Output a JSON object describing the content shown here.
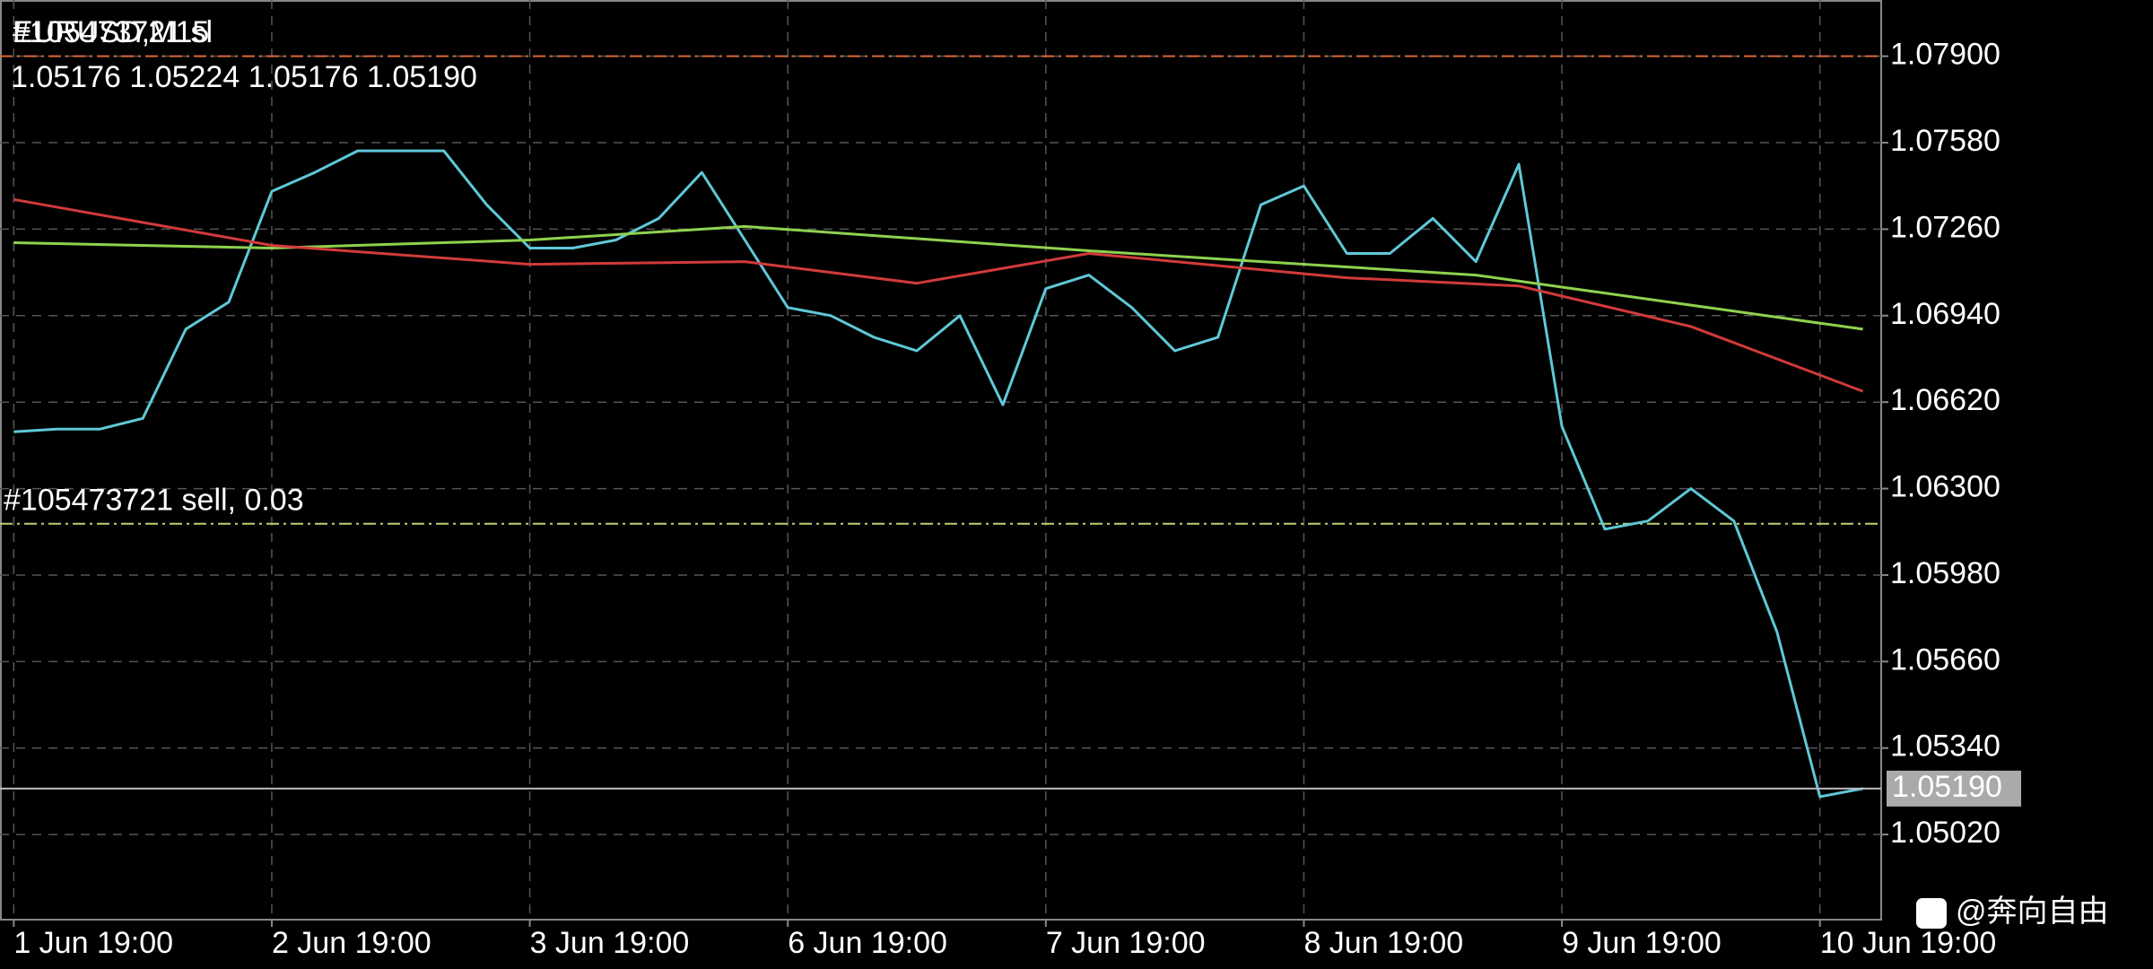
{
  "chart_data": {
    "type": "line",
    "title": "EURUSD,M15",
    "order_sl_label": "#105473721 sl",
    "ohlc_label": "1.05176 1.05224 1.05176 1.05190",
    "order_label": "#105473721 sell, 0.03",
    "watermark": "@奔向自由",
    "grid": true,
    "xlim": [
      -1.28,
      173.7
    ],
    "xticks": [
      {
        "value": 0,
        "label": "1 Jun 19:00"
      },
      {
        "value": 24,
        "label": "2 Jun 19:00"
      },
      {
        "value": 48,
        "label": "3 Jun 19:00"
      },
      {
        "value": 72,
        "label": "6 Jun 19:00"
      },
      {
        "value": 96,
        "label": "7 Jun 19:00"
      },
      {
        "value": 120,
        "label": "8 Jun 19:00"
      },
      {
        "value": 144,
        "label": "9 Jun 19:00"
      },
      {
        "value": 168,
        "label": "10 Jun 19:00"
      }
    ],
    "ylim": [
      1.04705,
      1.08108
    ],
    "yticks": [
      {
        "value": 1.079,
        "label": "1.07900"
      },
      {
        "value": 1.0758,
        "label": "1.07580"
      },
      {
        "value": 1.0726,
        "label": "1.07260"
      },
      {
        "value": 1.0694,
        "label": "1.06940"
      },
      {
        "value": 1.0662,
        "label": "1.06620"
      },
      {
        "value": 1.063,
        "label": "1.06300"
      },
      {
        "value": 1.0598,
        "label": "1.05980"
      },
      {
        "value": 1.0566,
        "label": "1.05660"
      },
      {
        "value": 1.0534,
        "label": "1.05340"
      },
      {
        "value": 1.0502,
        "label": "1.05020"
      }
    ],
    "levels": [
      {
        "value": 1.079,
        "color": "#d9683a"
      },
      {
        "value": 1.0617,
        "color": "#b7d36c"
      }
    ],
    "current_price": {
      "value": 1.0519,
      "label": "1.05190"
    },
    "series": [
      {
        "color": "#5fc8d8",
        "x": [
          0,
          4,
          8,
          12,
          16,
          20,
          24,
          28,
          32,
          36,
          40,
          44,
          48,
          52,
          56,
          60,
          64,
          68,
          72,
          76,
          80,
          84,
          88,
          92,
          96,
          100,
          104,
          108,
          112,
          116,
          120,
          124,
          128,
          132,
          136,
          140,
          144,
          148,
          152,
          156,
          160,
          164,
          168,
          172
        ],
        "values": [
          1.0651,
          1.0652,
          1.0652,
          1.0656,
          1.0689,
          1.0699,
          1.074,
          1.0747,
          1.0755,
          1.0755,
          1.0755,
          1.0735,
          1.0719,
          1.0719,
          1.0722,
          1.073,
          1.0747,
          1.0722,
          1.0697,
          1.0694,
          1.0686,
          1.0681,
          1.0694,
          1.0661,
          1.0704,
          1.0709,
          1.0697,
          1.0681,
          1.0686,
          1.0735,
          1.0742,
          1.0717,
          1.0717,
          1.073,
          1.0714,
          1.075,
          1.0653,
          1.0615,
          1.0618,
          1.063,
          1.0618,
          1.0577,
          1.0516,
          1.0519
        ]
      },
      {
        "color": "#8fd14f",
        "x": [
          0,
          24,
          48,
          68,
          100,
          136,
          172
        ],
        "values": [
          1.0721,
          1.0719,
          1.0722,
          1.0727,
          1.0718,
          1.0709,
          1.0689
        ]
      },
      {
        "color": "#d23a3a",
        "x": [
          0,
          24,
          48,
          68,
          84,
          100,
          124,
          140,
          156,
          172
        ],
        "values": [
          1.0737,
          1.072,
          1.0713,
          1.0714,
          1.0706,
          1.0717,
          1.0708,
          1.0705,
          1.069,
          1.0666
        ]
      }
    ]
  }
}
